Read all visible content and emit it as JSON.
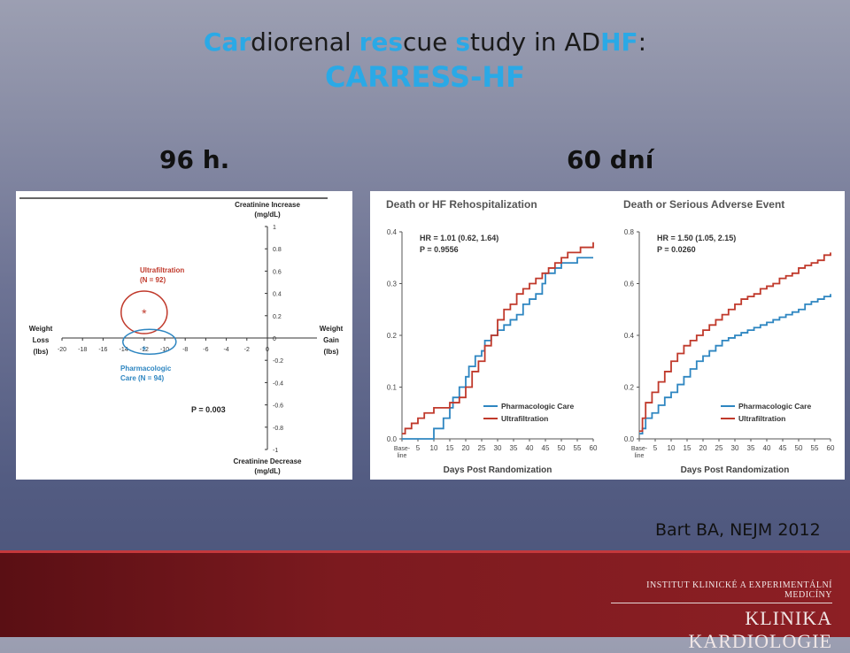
{
  "slide": {
    "title_parts": [
      {
        "text": "Car",
        "hl": true
      },
      {
        "text": "diorenal ",
        "hl": false
      },
      {
        "text": "res",
        "hl": true
      },
      {
        "text": "cue ",
        "hl": false
      },
      {
        "text": "s",
        "hl": true
      },
      {
        "text": "tudy in AD",
        "hl": false
      },
      {
        "text": "HF",
        "hl": true
      },
      {
        "text": ":",
        "hl": false
      }
    ],
    "subtitle": "CARRESS-HF",
    "left_period": "96 h.",
    "right_period": "60 dní",
    "source": "Bart BA, NEJM 2012",
    "footer_small": "INSTITUT KLINICKÉ A EXPERIMENTÁLNÍ MEDICÍNY",
    "footer_big": "KLINIKA KARDIOLOGIE",
    "accent_color": "#2aa9e6",
    "footer_color": "#7c1a1f"
  },
  "chart_data": [
    {
      "type": "scatter",
      "title": "",
      "y_label_top": [
        "Creatinine Increase",
        "(mg/dL)"
      ],
      "y_label_bottom": [
        "Creatinine Decrease",
        "(mg/dL)"
      ],
      "x_label_left": [
        "Weight",
        "Loss",
        "(lbs)"
      ],
      "x_label_right": [
        "Weight",
        "Gain",
        "(lbs)"
      ],
      "xlim": [
        -20,
        8
      ],
      "ylim": [
        -1,
        1
      ],
      "x_ticks": [
        -20,
        -18,
        -16,
        -14,
        -12,
        -10,
        -8,
        -6,
        -4,
        -2,
        0
      ],
      "y_ticks": [
        1,
        0.8,
        0.6,
        0.4,
        0.2,
        0,
        -0.2,
        -0.4,
        -0.6,
        -0.8,
        -1
      ],
      "y_tick_labels": [
        "1",
        "0.8",
        "0.6",
        "0.4",
        "0.2",
        "0",
        "-0.2",
        "-0.4",
        "-0.6",
        "-0.8",
        "-1"
      ],
      "series": [
        {
          "name": "Ultrafiltration",
          "label_lines": [
            "Ultrafiltration",
            "(N = 92)"
          ],
          "x": -12.0,
          "y": 0.23,
          "color": "#c0392b"
        },
        {
          "name": "Pharmacologic Care",
          "label_lines": [
            "Pharmacologic",
            "Care (N = 94)"
          ],
          "x": -12.0,
          "y": -0.05,
          "color": "#2e86c1"
        }
      ],
      "annotation": "P = 0.003"
    },
    {
      "type": "line",
      "title": "Death or HF Rehospitalization",
      "xlabel": "Days Post Randomization",
      "x_ticks": [
        0,
        5,
        10,
        15,
        20,
        25,
        30,
        35,
        40,
        45,
        50,
        55,
        60
      ],
      "x_tick_labels": [
        "Base-line",
        "5",
        "10",
        "15",
        "20",
        "25",
        "30",
        "35",
        "40",
        "45",
        "50",
        "55",
        "60"
      ],
      "y_ticks": [
        0,
        0.1,
        0.2,
        0.3,
        0.4
      ],
      "y_tick_labels": [
        "0.0",
        "0.1",
        "0.2",
        "0.3",
        "0.4"
      ],
      "ylim": [
        0,
        0.4
      ],
      "xlim": [
        0,
        60
      ],
      "stats": [
        "HR = 1.01 (0.62, 1.64)",
        "P = 0.9556"
      ],
      "legend": "bottom-right",
      "series": [
        {
          "name": "Pharmacologic Care",
          "color": "#2e86c1",
          "x": [
            0,
            9,
            10,
            13,
            15,
            16,
            18,
            20,
            21,
            23,
            25,
            26,
            28,
            30,
            32,
            34,
            36,
            38,
            40,
            42,
            44,
            45,
            48,
            50,
            52,
            55,
            58,
            60
          ],
          "y": [
            0,
            0,
            0.02,
            0.04,
            0.06,
            0.08,
            0.1,
            0.12,
            0.14,
            0.16,
            0.17,
            0.19,
            0.2,
            0.21,
            0.22,
            0.23,
            0.24,
            0.26,
            0.27,
            0.28,
            0.3,
            0.32,
            0.33,
            0.34,
            0.34,
            0.35,
            0.35,
            0.35
          ]
        },
        {
          "name": "Ultrafiltration",
          "color": "#c0392b",
          "x": [
            0,
            1,
            3,
            5,
            7,
            10,
            12,
            15,
            18,
            20,
            22,
            24,
            26,
            28,
            30,
            32,
            34,
            36,
            38,
            40,
            42,
            44,
            46,
            48,
            50,
            52,
            54,
            56,
            58,
            60
          ],
          "y": [
            0.01,
            0.02,
            0.03,
            0.04,
            0.05,
            0.06,
            0.06,
            0.07,
            0.08,
            0.1,
            0.13,
            0.15,
            0.18,
            0.2,
            0.23,
            0.25,
            0.26,
            0.28,
            0.29,
            0.3,
            0.31,
            0.32,
            0.33,
            0.34,
            0.35,
            0.36,
            0.36,
            0.37,
            0.37,
            0.38
          ]
        }
      ]
    },
    {
      "type": "line",
      "title": "Death or Serious Adverse Event",
      "xlabel": "Days Post Randomization",
      "x_ticks": [
        0,
        5,
        10,
        15,
        20,
        25,
        30,
        35,
        40,
        45,
        50,
        55,
        60
      ],
      "x_tick_labels": [
        "Base-line",
        "5",
        "10",
        "15",
        "20",
        "25",
        "30",
        "35",
        "40",
        "45",
        "50",
        "55",
        "60"
      ],
      "y_ticks": [
        0,
        0.2,
        0.4,
        0.6,
        0.8
      ],
      "y_tick_labels": [
        "0.0",
        "0.2",
        "0.4",
        "0.6",
        "0.8"
      ],
      "ylim": [
        0,
        0.8
      ],
      "xlim": [
        0,
        60
      ],
      "stats": [
        "HR = 1.50 (1.05, 2.15)",
        "P = 0.0260"
      ],
      "legend": "bottom-right",
      "series": [
        {
          "name": "Pharmacologic Care",
          "color": "#2e86c1",
          "x": [
            0,
            1,
            2,
            4,
            6,
            8,
            10,
            12,
            14,
            16,
            18,
            20,
            22,
            24,
            26,
            28,
            30,
            32,
            34,
            36,
            38,
            40,
            42,
            44,
            46,
            48,
            50,
            52,
            54,
            56,
            58,
            60
          ],
          "y": [
            0.02,
            0.04,
            0.08,
            0.1,
            0.13,
            0.16,
            0.18,
            0.21,
            0.24,
            0.27,
            0.3,
            0.32,
            0.34,
            0.36,
            0.38,
            0.39,
            0.4,
            0.41,
            0.42,
            0.43,
            0.44,
            0.45,
            0.46,
            0.47,
            0.48,
            0.49,
            0.5,
            0.52,
            0.53,
            0.54,
            0.55,
            0.56
          ]
        },
        {
          "name": "Ultrafiltration",
          "color": "#c0392b",
          "x": [
            0,
            1,
            2,
            4,
            6,
            8,
            10,
            12,
            14,
            16,
            18,
            20,
            22,
            24,
            26,
            28,
            30,
            32,
            34,
            36,
            38,
            40,
            42,
            44,
            46,
            48,
            50,
            52,
            54,
            56,
            58,
            60
          ],
          "y": [
            0.03,
            0.08,
            0.14,
            0.18,
            0.22,
            0.26,
            0.3,
            0.33,
            0.36,
            0.38,
            0.4,
            0.42,
            0.44,
            0.46,
            0.48,
            0.5,
            0.52,
            0.54,
            0.55,
            0.56,
            0.58,
            0.59,
            0.6,
            0.62,
            0.63,
            0.64,
            0.66,
            0.67,
            0.68,
            0.69,
            0.71,
            0.72
          ]
        }
      ]
    }
  ]
}
